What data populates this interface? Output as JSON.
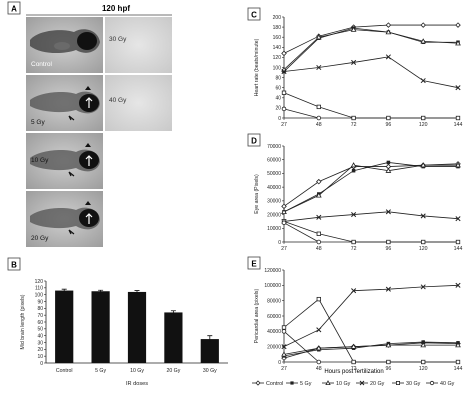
{
  "panels": {
    "A": {
      "letter": "A",
      "header": "120 hpf",
      "images": [
        {
          "label": "Control"
        },
        {
          "label": "30 Gy"
        },
        {
          "label": "5 Gy"
        },
        {
          "label": "40 Gy"
        },
        {
          "label": "10 Gy"
        },
        {
          "label": "20 Gy"
        }
      ]
    },
    "B": {
      "letter": "B"
    },
    "C": {
      "letter": "C"
    },
    "D": {
      "letter": "D"
    },
    "E": {
      "letter": "E"
    }
  },
  "legend": {
    "title": "Hours post fertilization",
    "entries": [
      "Control",
      "5 Gy",
      "10 Gy",
      "20 Gy",
      "30 Gy",
      "40 Gy"
    ]
  },
  "chart_data": [
    {
      "id": "B",
      "type": "bar",
      "ylabel": "Mid brain length (pixels)",
      "xlabel": "IR doses",
      "categories": [
        "Control",
        "5 Gy",
        "10 Gy",
        "20 Gy",
        "30 Gy"
      ],
      "values": [
        106,
        105,
        104,
        74,
        35
      ],
      "errors": [
        2,
        1.5,
        2,
        2.5,
        5
      ],
      "ylim": [
        0,
        120
      ],
      "yticks": [
        "0",
        "10",
        "20",
        "30",
        "40",
        "50",
        "60",
        "70",
        "80",
        "90",
        "100",
        "110",
        "120"
      ]
    },
    {
      "id": "C",
      "type": "line",
      "ylabel": "Heart rate (beats/minute)",
      "x": [
        "27",
        "48",
        "72",
        "96",
        "120",
        "144"
      ],
      "ylim": [
        0,
        200
      ],
      "yticks": [
        "0",
        "20",
        "40",
        "60",
        "80",
        "100",
        "120",
        "140",
        "160",
        "180",
        "200"
      ],
      "series": [
        {
          "name": "Control",
          "values": [
            128,
            162,
            180,
            184,
            184,
            184
          ]
        },
        {
          "name": "5 Gy",
          "values": [
            92,
            158,
            178,
            170,
            150,
            150
          ]
        },
        {
          "name": "10 Gy",
          "values": [
            96,
            160,
            175,
            170,
            152,
            148
          ]
        },
        {
          "name": "20 Gy",
          "values": [
            92,
            100,
            110,
            121,
            74,
            60
          ]
        },
        {
          "name": "30 Gy",
          "values": [
            50,
            22,
            0,
            0,
            0,
            0
          ]
        },
        {
          "name": "40 Gy",
          "values": [
            18,
            0,
            null,
            null,
            null,
            null
          ]
        }
      ]
    },
    {
      "id": "D",
      "type": "line",
      "ylabel": "Eye area (Pixels)",
      "x": [
        "27",
        "48",
        "72",
        "96",
        "120",
        "144"
      ],
      "ylim": [
        0,
        70000
      ],
      "yticks": [
        "0",
        "10000",
        "20000",
        "30000",
        "40000",
        "50000",
        "60000",
        "70000"
      ],
      "series": [
        {
          "name": "Control",
          "values": [
            26000,
            44000,
            55000,
            55000,
            56000,
            57000
          ]
        },
        {
          "name": "5 Gy",
          "values": [
            22000,
            35000,
            52000,
            58000,
            55000,
            55000
          ]
        },
        {
          "name": "10 Gy",
          "values": [
            22000,
            34000,
            56000,
            52000,
            56000,
            56000
          ]
        },
        {
          "name": "20 Gy",
          "values": [
            15000,
            18000,
            20000,
            22000,
            19000,
            17000
          ]
        },
        {
          "name": "30 Gy",
          "values": [
            15000,
            6000,
            0,
            0,
            0,
            0
          ]
        },
        {
          "name": "40 Gy",
          "values": [
            14000,
            0,
            null,
            null,
            null,
            null
          ]
        }
      ]
    },
    {
      "id": "E",
      "type": "line",
      "ylabel": "Pericardial area (pixels)",
      "x": [
        "27",
        "48",
        "72",
        "96",
        "120",
        "144"
      ],
      "ylim": [
        0,
        120000
      ],
      "yticks": [
        "0",
        "20000",
        "40000",
        "60000",
        "80000",
        "100000",
        "120000"
      ],
      "series": [
        {
          "name": "Control",
          "values": [
            5000,
            18000,
            20000,
            22000,
            25000,
            24000
          ]
        },
        {
          "name": "5 Gy",
          "values": [
            8000,
            16000,
            18000,
            24000,
            26000,
            25000
          ]
        },
        {
          "name": "10 Gy",
          "values": [
            10000,
            18000,
            20000,
            22000,
            22000,
            22000
          ]
        },
        {
          "name": "20 Gy",
          "values": [
            20000,
            42000,
            93000,
            95000,
            98000,
            100000
          ]
        },
        {
          "name": "30 Gy",
          "values": [
            45000,
            82000,
            0,
            0,
            0,
            0
          ]
        },
        {
          "name": "40 Gy",
          "values": [
            40000,
            0,
            null,
            null,
            null,
            null
          ]
        }
      ]
    }
  ]
}
